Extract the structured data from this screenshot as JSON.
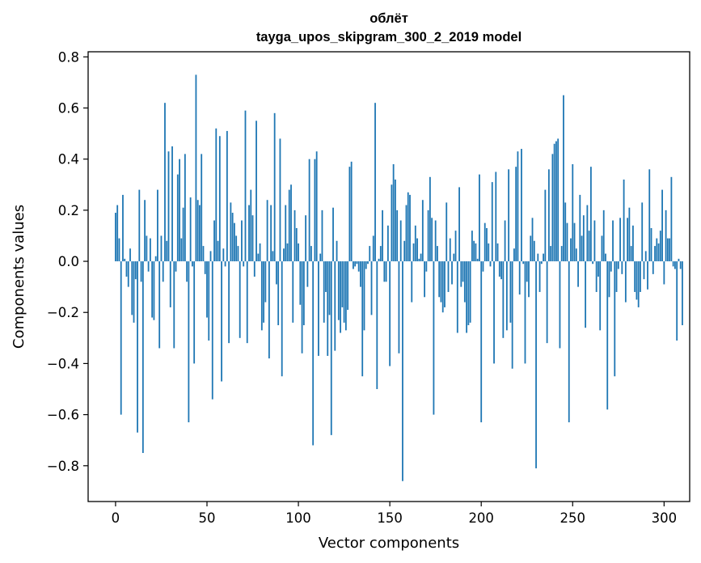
{
  "chart_data": {
    "type": "bar",
    "title": "облёт",
    "subtitle": "tayga_upos_skipgram_300_2_2019 model",
    "xlabel": "Vector components",
    "ylabel": "Components values",
    "xlim": [
      -15,
      314
    ],
    "ylim": [
      -0.94,
      0.82
    ],
    "xticks": [
      0,
      50,
      100,
      150,
      200,
      250,
      300
    ],
    "xtick_labels": [
      "0",
      "50",
      "100",
      "150",
      "200",
      "250",
      "300"
    ],
    "yticks": [
      0.8,
      0.6,
      0.4,
      0.2,
      0.0,
      -0.2,
      -0.4,
      -0.6,
      -0.8
    ],
    "ytick_labels": [
      "0.8",
      "0.6",
      "0.4",
      "0.2",
      "0.0",
      "−0.2",
      "−0.4",
      "−0.6",
      "−0.8"
    ],
    "grid": false,
    "bar_color": "#1f77b4",
    "values": [
      0.19,
      0.22,
      0.09,
      -0.6,
      0.26,
      0.01,
      -0.06,
      -0.1,
      0.05,
      -0.21,
      -0.24,
      -0.07,
      -0.67,
      0.28,
      -0.08,
      -0.75,
      0.24,
      0.1,
      -0.04,
      0.09,
      -0.22,
      -0.23,
      0.02,
      0.28,
      -0.34,
      0.1,
      -0.08,
      0.62,
      0.08,
      0.43,
      -0.18,
      0.45,
      -0.34,
      -0.04,
      0.34,
      0.4,
      0.09,
      0.21,
      0.42,
      -0.08,
      -0.63,
      0.25,
      -0.02,
      -0.4,
      0.73,
      0.24,
      0.22,
      0.42,
      0.06,
      -0.05,
      -0.22,
      -0.31,
      0.04,
      -0.54,
      0.16,
      0.52,
      0.08,
      0.49,
      -0.47,
      0.05,
      -0.02,
      0.51,
      -0.32,
      0.23,
      0.19,
      0.15,
      0.1,
      0.06,
      -0.3,
      0.16,
      -0.02,
      0.59,
      -0.32,
      0.22,
      0.28,
      0.18,
      -0.06,
      0.55,
      0.03,
      0.07,
      -0.27,
      -0.24,
      -0.16,
      0.24,
      -0.38,
      0.22,
      0.04,
      0.58,
      -0.09,
      -0.25,
      0.48,
      -0.45,
      0.05,
      0.22,
      0.07,
      0.28,
      0.3,
      -0.24,
      0.2,
      0.13,
      0.07,
      -0.17,
      -0.36,
      -0.25,
      0.18,
      -0.1,
      0.4,
      0.06,
      -0.72,
      0.4,
      0.43,
      -0.37,
      0.03,
      0.2,
      -0.24,
      -0.12,
      -0.37,
      -0.21,
      -0.68,
      0.21,
      -0.35,
      0.08,
      -0.23,
      -0.28,
      -0.18,
      -0.24,
      -0.27,
      -0.19,
      0.37,
      0.39,
      -0.03,
      -0.02,
      -0.01,
      -0.04,
      -0.1,
      -0.45,
      -0.27,
      -0.03,
      -0.01,
      0.06,
      -0.21,
      0.1,
      0.62,
      -0.5,
      0.01,
      0.06,
      0.2,
      -0.08,
      -0.08,
      0.14,
      -0.41,
      0.3,
      0.38,
      0.32,
      0.2,
      -0.36,
      0.16,
      -0.86,
      0.08,
      0.22,
      0.27,
      0.26,
      -0.16,
      0.07,
      0.14,
      0.09,
      0.01,
      0.03,
      0.24,
      -0.14,
      -0.04,
      0.2,
      0.33,
      0.17,
      -0.6,
      0.16,
      0.06,
      -0.14,
      -0.16,
      -0.2,
      -0.18,
      0.23,
      -0.12,
      0.09,
      -0.09,
      0.03,
      0.12,
      -0.28,
      0.29,
      -0.1,
      -0.08,
      -0.16,
      -0.28,
      -0.25,
      -0.24,
      0.12,
      0.08,
      0.07,
      0.01,
      0.34,
      -0.63,
      -0.04,
      0.15,
      0.13,
      0.07,
      -0.02,
      0.31,
      -0.4,
      0.35,
      0.07,
      -0.06,
      -0.07,
      -0.3,
      0.16,
      -0.27,
      0.36,
      -0.24,
      -0.42,
      0.05,
      0.37,
      0.43,
      -0.13,
      0.44,
      -0.01,
      -0.4,
      -0.08,
      -0.14,
      0.1,
      0.17,
      0.08,
      -0.81,
      0.03,
      -0.12,
      -0.01,
      0.03,
      0.28,
      -0.32,
      0.36,
      0.06,
      0.42,
      0.46,
      0.47,
      0.48,
      -0.34,
      0.06,
      0.65,
      0.23,
      0.15,
      -0.63,
      0.09,
      0.38,
      0.15,
      0.05,
      -0.1,
      0.26,
      0.1,
      0.18,
      -0.26,
      0.22,
      0.12,
      0.37,
      -0.01,
      0.16,
      -0.12,
      -0.06,
      -0.27,
      0.1,
      0.2,
      0.03,
      -0.58,
      -0.14,
      -0.04,
      0.16,
      -0.45,
      -0.12,
      -0.03,
      0.17,
      -0.05,
      0.32,
      -0.16,
      0.17,
      0.21,
      0.06,
      0.14,
      -0.12,
      -0.15,
      -0.18,
      -0.12,
      0.23,
      -0.07,
      0.04,
      -0.11,
      0.36,
      0.13,
      -0.05,
      0.06,
      0.09,
      0.07,
      0.12,
      0.28,
      -0.09,
      0.2,
      0.09,
      0.09,
      0.33,
      -0.02,
      -0.03,
      -0.31,
      0.01,
      -0.03,
      -0.25
    ]
  }
}
